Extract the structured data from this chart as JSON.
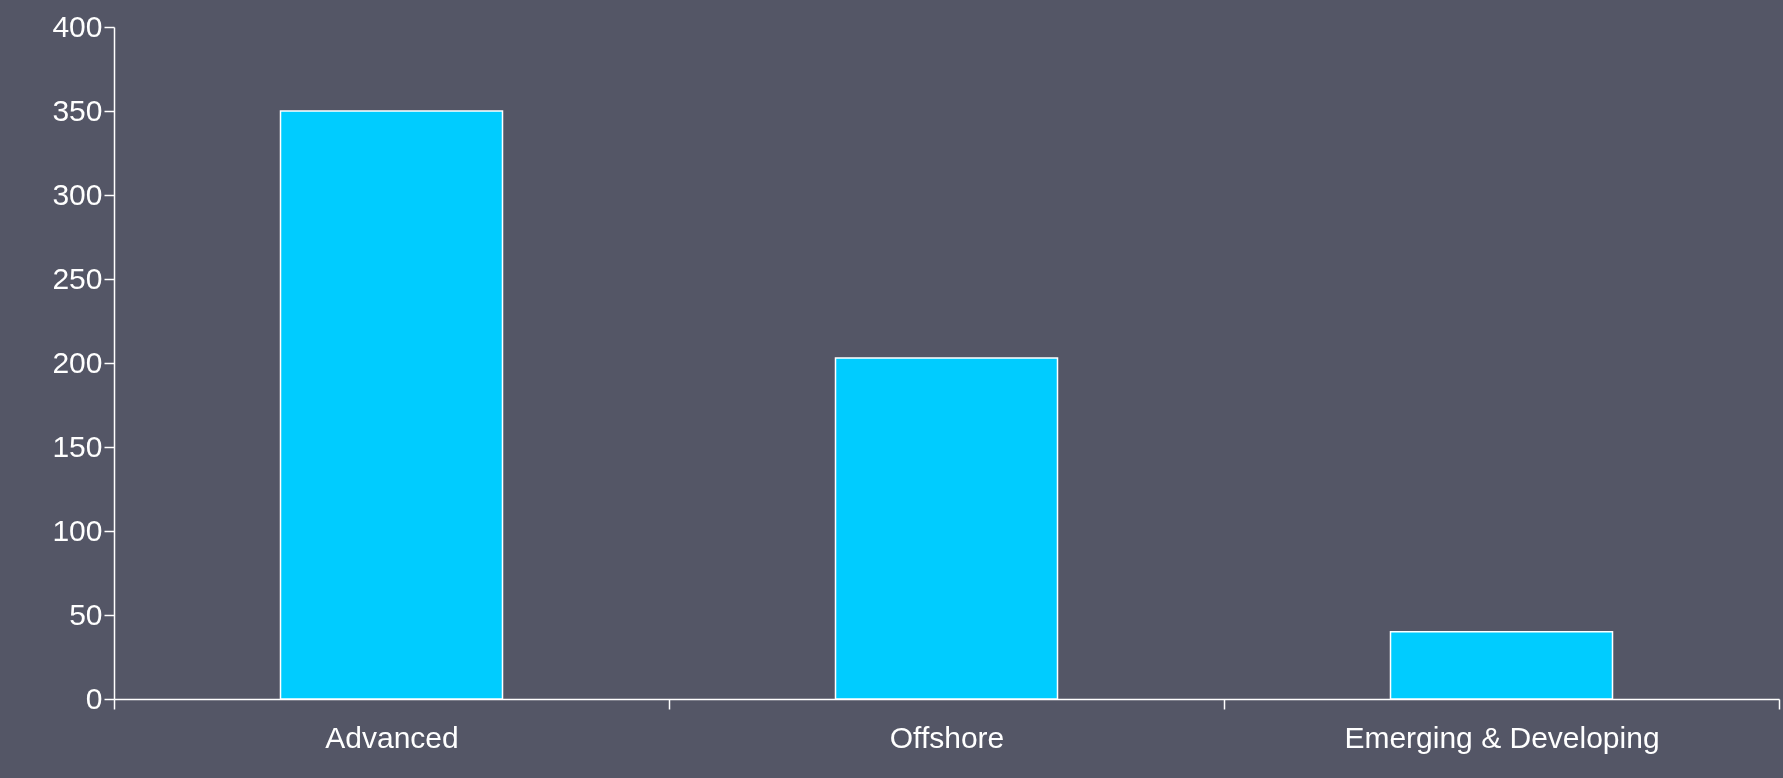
{
  "chart_data": {
    "type": "bar",
    "categories": [
      "Advanced",
      "Offshore",
      "Emerging & Developing"
    ],
    "values": [
      350,
      203,
      40
    ],
    "color": "#00ccff",
    "ylim": [
      0,
      400
    ],
    "yticks": [
      0,
      50,
      100,
      150,
      200,
      250,
      300,
      350,
      400
    ],
    "grid": false
  }
}
